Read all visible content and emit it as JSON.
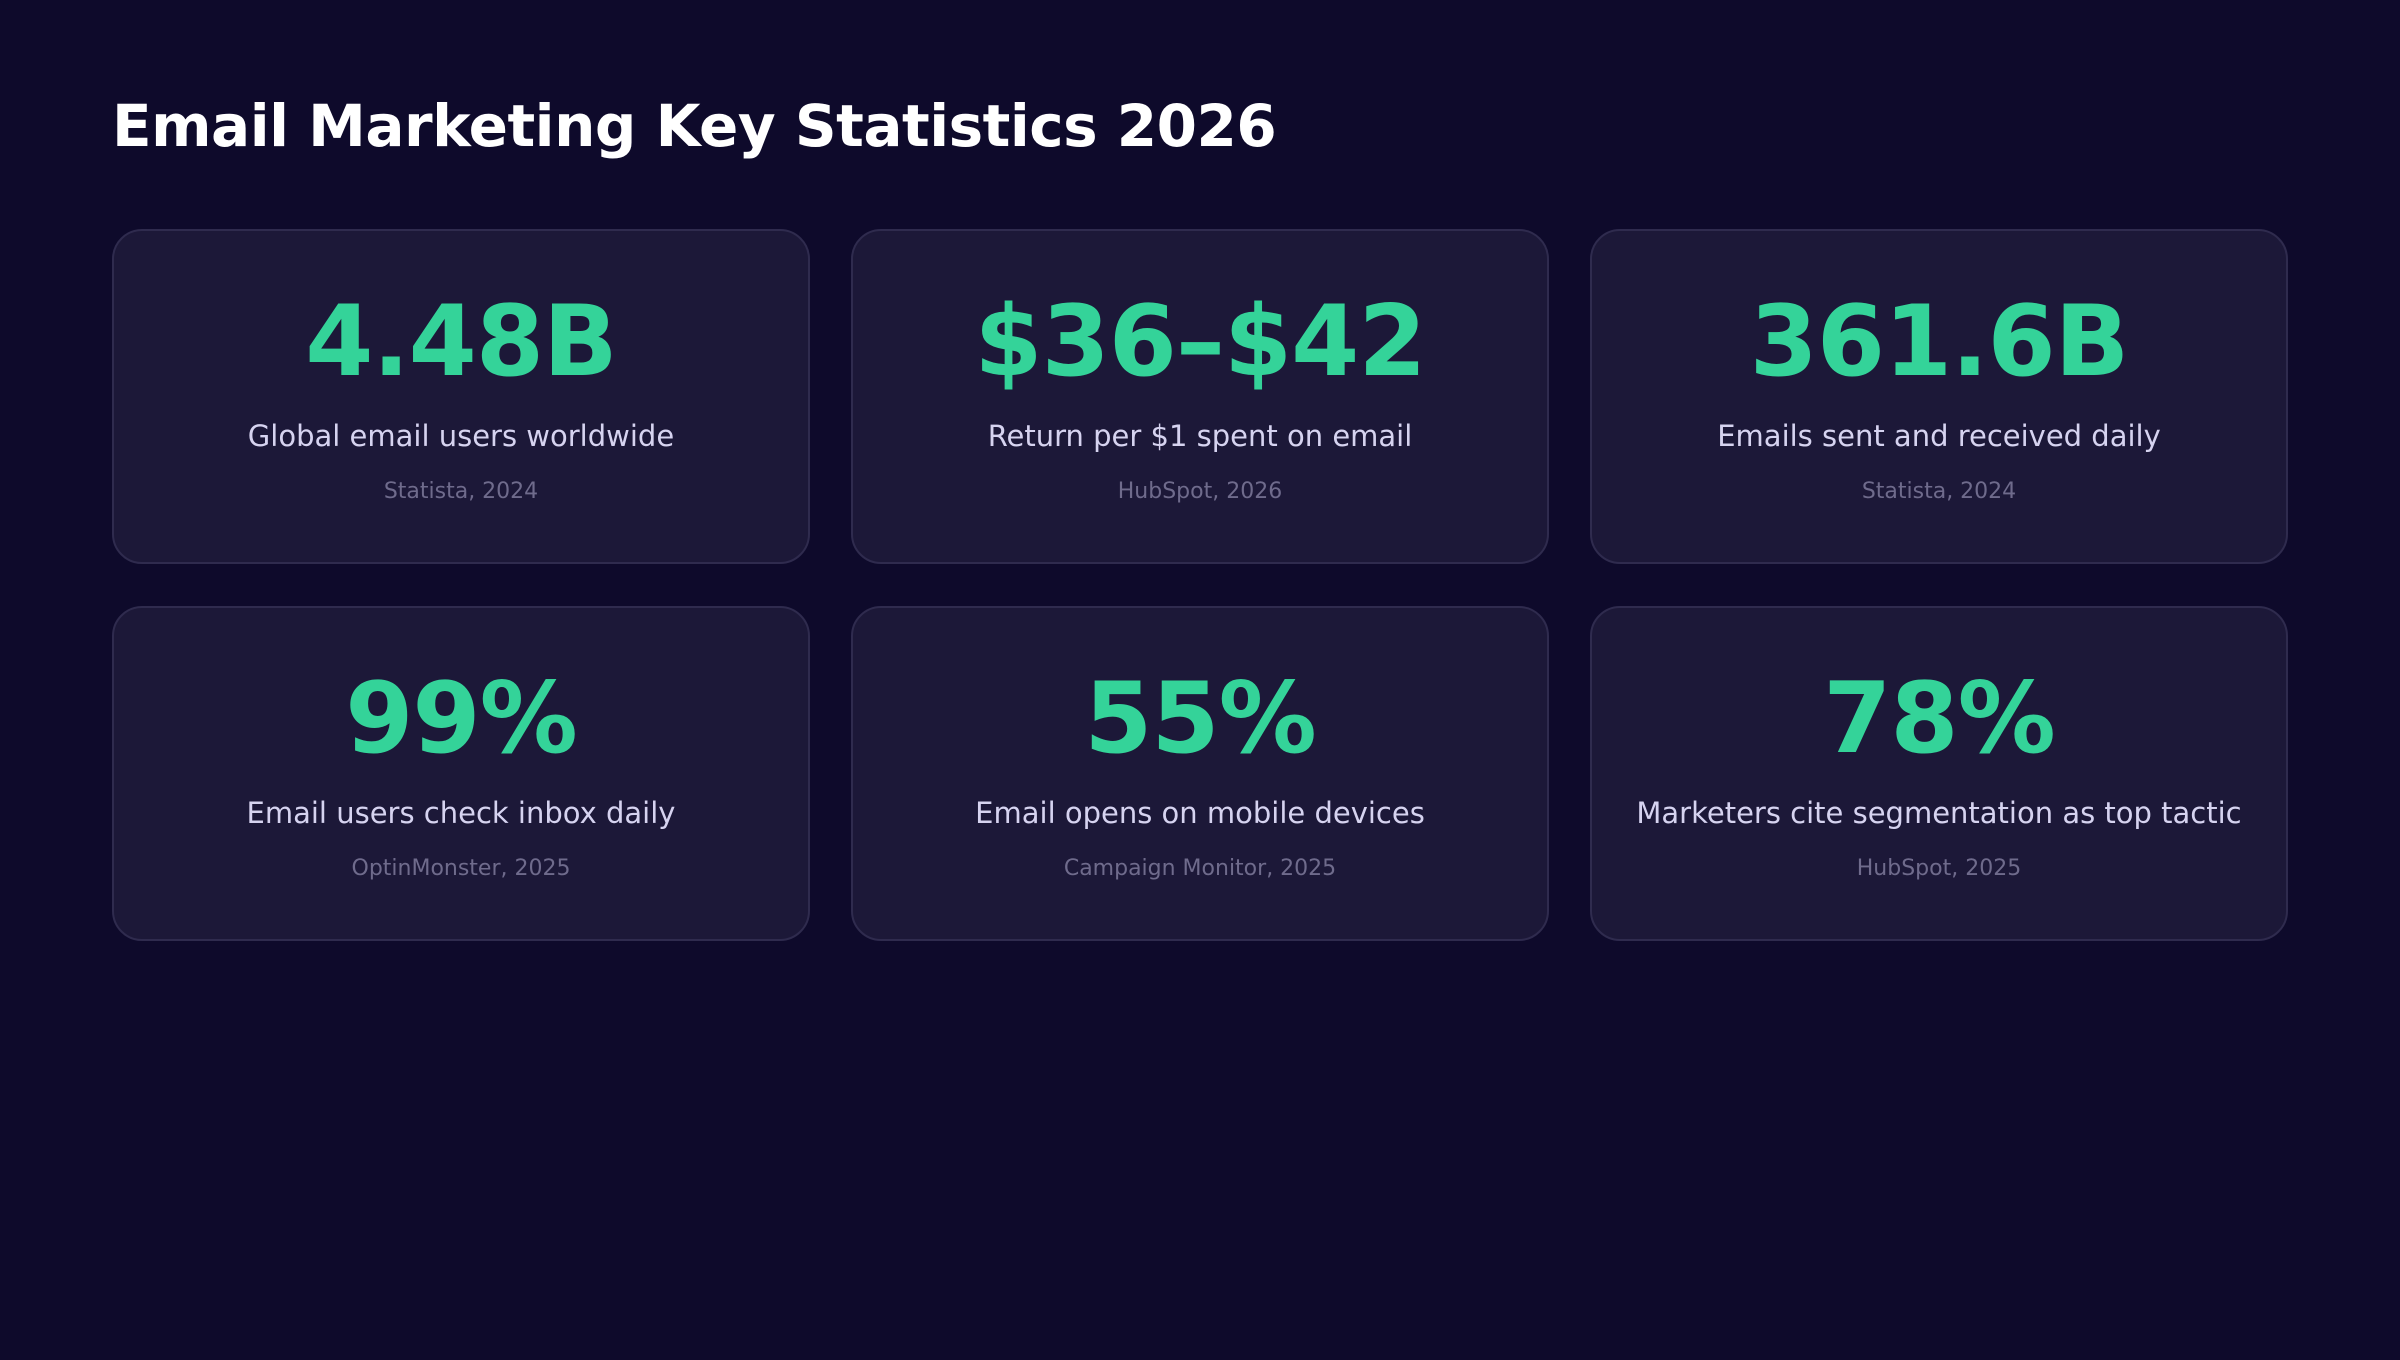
{
  "header": {
    "title": "Email Marketing Key Statistics 2026"
  },
  "cards": [
    {
      "value": "4.48B",
      "label": "Global email users worldwide",
      "source": "Statista, 2024"
    },
    {
      "value": "$36–$42",
      "label": "Return per $1 spent on email",
      "source": "HubSpot, 2026"
    },
    {
      "value": "361.6B",
      "label": "Emails sent and received daily",
      "source": "Statista, 2024"
    },
    {
      "value": "99%",
      "label": "Email users check inbox daily",
      "source": "OptinMonster, 2025"
    },
    {
      "value": "55%",
      "label": "Email opens on mobile devices",
      "source": "Campaign Monitor, 2025"
    },
    {
      "value": "78%",
      "label": "Marketers cite segmentation as top tactic",
      "source": "HubSpot, 2025"
    }
  ]
}
